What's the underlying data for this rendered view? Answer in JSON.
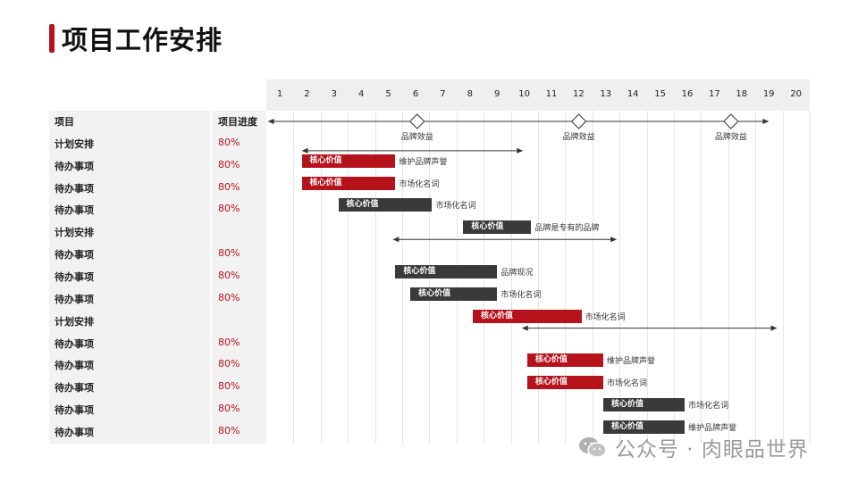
{
  "title": "项目工作安排",
  "table": {
    "header": {
      "name": "项目",
      "progress": "项目进度"
    },
    "rows": [
      {
        "name": "计划安排",
        "progress": "80%"
      },
      {
        "name": "待办事项",
        "progress": "80%"
      },
      {
        "name": "待办事项",
        "progress": "80%"
      },
      {
        "name": "待办事项",
        "progress": "80%"
      },
      {
        "name": "计划安排",
        "progress": ""
      },
      {
        "name": "待办事项",
        "progress": "80%"
      },
      {
        "name": "待办事项",
        "progress": "80%"
      },
      {
        "name": "待办事项",
        "progress": "80%"
      },
      {
        "name": "计划安排",
        "progress": ""
      },
      {
        "name": "待办事项",
        "progress": "80%"
      },
      {
        "name": "待办事项",
        "progress": "80%"
      },
      {
        "name": "待办事项",
        "progress": "80%"
      },
      {
        "name": "待办事项",
        "progress": "80%"
      },
      {
        "name": "待办事项",
        "progress": "80%"
      }
    ]
  },
  "timeline": {
    "columns": [
      "1",
      "2",
      "3",
      "4",
      "5",
      "6",
      "7",
      "8",
      "9",
      "10",
      "11",
      "12",
      "13",
      "14",
      "15",
      "16",
      "17",
      "18",
      "19",
      "20"
    ],
    "milestones": [
      {
        "label": "品牌效益",
        "at": 5.55
      },
      {
        "label": "品牌效益",
        "at": 11.5
      },
      {
        "label": "品牌效益",
        "at": 17.1
      }
    ],
    "main_span": {
      "start": 0.05,
      "end": 18.5
    }
  },
  "groups": [
    {
      "row": 1,
      "start": 1.3,
      "end": 9.45
    },
    {
      "row": 5,
      "start": 4.65,
      "end": 12.9
    },
    {
      "row": 9,
      "start": 9.4,
      "end": 18.8
    }
  ],
  "bars": [
    {
      "row": 2,
      "start": 1.3,
      "end": 4.75,
      "color": "red",
      "label": "核心价值",
      "note": "维护品牌声誉"
    },
    {
      "row": 3,
      "start": 1.3,
      "end": 4.75,
      "color": "red",
      "label": "核心价值",
      "note": "市场化名词"
    },
    {
      "row": 4,
      "start": 2.65,
      "end": 6.1,
      "color": "dark",
      "label": "核心价值",
      "note": "市场化名词"
    },
    {
      "row": 5,
      "start": 7.25,
      "end": 9.75,
      "color": "dark",
      "label": "核心价值",
      "note": "品牌是专有的品牌"
    },
    {
      "row": 7,
      "start": 4.75,
      "end": 8.5,
      "color": "dark",
      "label": "核心价值",
      "note": "品牌现况"
    },
    {
      "row": 8,
      "start": 5.3,
      "end": 8.5,
      "color": "dark",
      "label": "核心价值",
      "note": "市场化名词"
    },
    {
      "row": 9,
      "start": 7.6,
      "end": 11.6,
      "color": "red",
      "label": "核心价值",
      "note": "市场化名词"
    },
    {
      "row": 11,
      "start": 9.6,
      "end": 12.4,
      "color": "red",
      "label": "核心价值",
      "note": "维护品牌声誉"
    },
    {
      "row": 12,
      "start": 9.6,
      "end": 12.4,
      "color": "red",
      "label": "核心价值",
      "note": "市场化名词"
    },
    {
      "row": 13,
      "start": 12.4,
      "end": 15.4,
      "color": "dark",
      "label": "核心价值",
      "note": "市场化名词"
    },
    {
      "row": 14,
      "start": 12.4,
      "end": 15.4,
      "color": "dark",
      "label": "核心价值",
      "note": "维护品牌声誉"
    }
  ],
  "colors": {
    "accent": "#b5121b",
    "dark": "#3a3a3a",
    "grid": "#e6e6e6"
  },
  "watermark": "公众号 · 肉眼品世界",
  "watermark_icon": "wechat-icon"
}
